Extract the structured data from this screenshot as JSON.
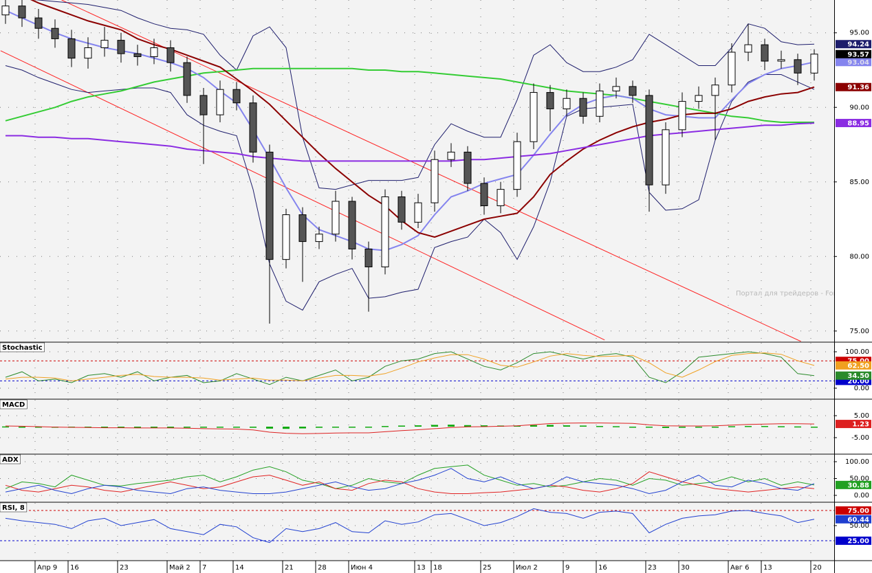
{
  "chart_data": [
    {
      "type": "candlestick",
      "watermark": "Портал для трейдеров - ForTrader.ru",
      "categories": [
        null,
        null,
        "Апр 9",
        null,
        "16",
        null,
        null,
        "23",
        null,
        null,
        "Май 2",
        null,
        "7",
        null,
        "14",
        null,
        null,
        "21",
        null,
        "28",
        null,
        "Июн 4",
        null,
        null,
        null,
        "13",
        "18",
        null,
        null,
        "25",
        null,
        "Июл 2",
        null,
        null,
        "9",
        null,
        "16",
        null,
        null,
        "23",
        null,
        "30",
        null,
        null,
        "Авг 6",
        null,
        "13",
        null,
        null,
        "20"
      ],
      "open": [
        96.2,
        96.8,
        96.0,
        95.3,
        94.6,
        93.3,
        94.0,
        94.5,
        93.6,
        93.4,
        94.0,
        93.0,
        90.8,
        89.5,
        91.2,
        90.3,
        87.0,
        79.8,
        82.8,
        81.0,
        81.5,
        83.7,
        80.5,
        79.3,
        84.0,
        82.3,
        83.6,
        86.5,
        87.0,
        84.9,
        83.4,
        84.5,
        87.7,
        91.0,
        89.9,
        90.6,
        89.4,
        91.1,
        91.4,
        90.8,
        84.8,
        88.5,
        90.4,
        90.8,
        91.5,
        93.7,
        94.2,
        93.1,
        93.2,
        92.3
      ],
      "high": [
        97.4,
        97.3,
        96.6,
        95.9,
        95.2,
        94.7,
        95.4,
        95.0,
        94.2,
        94.6,
        94.5,
        93.4,
        91.3,
        91.8,
        91.7,
        90.8,
        87.5,
        83.2,
        83.3,
        82.0,
        84.4,
        84.0,
        81.0,
        84.5,
        84.4,
        84.2,
        87.1,
        87.6,
        87.4,
        85.3,
        85.0,
        88.3,
        91.6,
        91.5,
        91.2,
        91.0,
        91.6,
        92.0,
        91.8,
        91.2,
        89.0,
        91.0,
        91.4,
        92.0,
        94.3,
        95.6,
        94.6,
        93.8,
        93.6,
        93.9
      ],
      "low": [
        95.6,
        95.4,
        94.6,
        94.0,
        92.7,
        92.6,
        93.4,
        93.0,
        92.8,
        92.9,
        92.4,
        90.3,
        86.2,
        89.0,
        89.8,
        86.3,
        75.5,
        79.2,
        78.3,
        80.5,
        81.0,
        79.8,
        76.3,
        78.8,
        81.8,
        81.9,
        83.0,
        86.0,
        84.4,
        82.8,
        82.9,
        84.0,
        87.2,
        88.4,
        89.4,
        88.9,
        89.0,
        90.6,
        90.3,
        83.0,
        84.2,
        88.0,
        89.9,
        87.8,
        91.0,
        93.1,
        92.5,
        92.6,
        91.5,
        91.8
      ],
      "close": [
        96.8,
        96.0,
        95.3,
        94.6,
        93.3,
        94.0,
        94.5,
        93.6,
        93.4,
        94.0,
        93.0,
        90.8,
        89.5,
        91.2,
        90.3,
        87.0,
        79.8,
        82.8,
        81.0,
        81.5,
        83.7,
        80.5,
        79.3,
        84.0,
        82.3,
        83.6,
        86.5,
        87.0,
        84.9,
        83.4,
        84.5,
        87.7,
        91.0,
        89.9,
        90.6,
        89.4,
        91.1,
        91.4,
        90.8,
        84.8,
        88.5,
        90.4,
        90.8,
        91.5,
        93.7,
        94.2,
        93.1,
        93.2,
        92.3,
        93.57
      ],
      "close_box_color": "#000000",
      "up_color": "#ffffff",
      "down_color": "#555555",
      "overlays": [
        {
          "color": "#1c1c6b",
          "box": true,
          "values": [
            97.5,
            97.3,
            97.2,
            97.1,
            97.0,
            96.9,
            96.7,
            96.5,
            96.0,
            95.6,
            95.3,
            95.2,
            94.9,
            93.5,
            92.5,
            94.8,
            95.4,
            94.0,
            88.0,
            84.6,
            84.5,
            84.8,
            85.1,
            85.1,
            85.1,
            85.3,
            87.5,
            88.9,
            88.4,
            88.0,
            88.0,
            90.5,
            93.5,
            94.2,
            93.0,
            92.4,
            92.4,
            92.7,
            93.2,
            94.9,
            94.2,
            93.5,
            92.8,
            92.8,
            94.0,
            95.6,
            95.3,
            94.4,
            94.2,
            94.24
          ]
        },
        {
          "color": "#1c1c6b",
          "box": false,
          "values": [
            92.8,
            92.5,
            92.0,
            91.6,
            91.2,
            91.0,
            91.1,
            91.2,
            91.3,
            91.3,
            91.0,
            89.5,
            88.8,
            88.4,
            88.1,
            84.5,
            79.5,
            77.0,
            76.4,
            78.3,
            78.8,
            79.2,
            77.2,
            77.3,
            77.6,
            77.8,
            80.6,
            81.0,
            81.3,
            82.5,
            81.6,
            79.8,
            82.0,
            85.0,
            89.4,
            89.9,
            90.0,
            90.1,
            90.2,
            84.3,
            83.1,
            83.2,
            83.8,
            87.8,
            90.4,
            91.7,
            92.2,
            92.2,
            91.7,
            91.2
          ]
        },
        {
          "color": "#33cc33",
          "box": false,
          "values": [
            89.1,
            89.4,
            89.7,
            90.0,
            90.4,
            90.7,
            90.9,
            91.1,
            91.4,
            91.7,
            91.9,
            92.1,
            92.3,
            92.4,
            92.5,
            92.6,
            92.6,
            92.6,
            92.6,
            92.6,
            92.6,
            92.6,
            92.5,
            92.5,
            92.4,
            92.4,
            92.3,
            92.2,
            92.1,
            92.0,
            91.9,
            91.7,
            91.5,
            91.3,
            91.1,
            91.0,
            90.9,
            90.8,
            90.6,
            90.4,
            90.2,
            90.0,
            89.8,
            89.6,
            89.4,
            89.3,
            89.1,
            89.0,
            89.0,
            89.0
          ]
        },
        {
          "color": "#8484ee",
          "box": true,
          "values": [
            96.5,
            96.0,
            95.5,
            95.0,
            94.6,
            94.3,
            94.0,
            93.8,
            93.6,
            93.3,
            93.0,
            92.6,
            92.0,
            91.1,
            90.3,
            88.5,
            86.6,
            84.6,
            82.8,
            81.8,
            81.4,
            81.0,
            80.5,
            80.4,
            80.8,
            81.4,
            82.8,
            84.0,
            84.4,
            84.9,
            85.2,
            85.5,
            86.8,
            88.2,
            89.5,
            90.2,
            90.6,
            90.8,
            90.6,
            89.9,
            89.5,
            89.4,
            89.3,
            89.3,
            90.5,
            91.6,
            92.2,
            92.6,
            92.8,
            93.04
          ]
        },
        {
          "color": "#8b0000",
          "box": true,
          "values": [
            97.9,
            97.5,
            97.0,
            96.6,
            96.2,
            95.8,
            95.5,
            95.2,
            94.6,
            94.2,
            93.9,
            93.5,
            93.1,
            92.7,
            91.9,
            91.1,
            90.2,
            89.1,
            88.0,
            86.9,
            85.9,
            85.0,
            84.1,
            83.4,
            82.4,
            81.6,
            81.3,
            81.7,
            82.1,
            82.5,
            82.7,
            82.9,
            84.0,
            85.5,
            86.4,
            87.2,
            87.8,
            88.3,
            88.7,
            89.0,
            89.2,
            89.5,
            89.6,
            89.6,
            89.9,
            90.4,
            90.7,
            90.9,
            91.0,
            91.36
          ]
        },
        {
          "color": "#8a2be2",
          "box": true,
          "values": [
            88.1,
            88.1,
            88.0,
            88.0,
            87.9,
            87.9,
            87.8,
            87.7,
            87.6,
            87.5,
            87.4,
            87.2,
            87.1,
            87.0,
            86.9,
            86.7,
            86.6,
            86.5,
            86.4,
            86.4,
            86.4,
            86.4,
            86.4,
            86.4,
            86.4,
            86.4,
            86.4,
            86.4,
            86.5,
            86.5,
            86.6,
            86.7,
            86.8,
            86.9,
            87.1,
            87.3,
            87.5,
            87.7,
            87.9,
            88.1,
            88.2,
            88.3,
            88.4,
            88.5,
            88.6,
            88.7,
            88.8,
            88.8,
            88.9,
            88.95
          ]
        }
      ],
      "trendlines": [
        {
          "color": "#ff2020",
          "x": [
            -0.3,
            36.3
          ],
          "y": [
            93.8,
            74.4
          ]
        },
        {
          "color": "#ff2020",
          "x": [
            3.4,
            48.2
          ],
          "y": [
            97.2,
            74.3
          ]
        }
      ],
      "ylim": [
        74.3,
        97.2
      ],
      "yticks": [
        {
          "value": 75,
          "label": "75.00"
        },
        {
          "value": 80,
          "label": "80.00"
        },
        {
          "value": 85,
          "label": "85.00"
        },
        {
          "value": 90,
          "label": "90.00"
        },
        {
          "value": 95,
          "label": "95.00"
        }
      ],
      "grid": true
    },
    {
      "type": "line",
      "title": "Stochastic",
      "series": [
        {
          "color": "#2a8a2a",
          "last_label": "34.50",
          "values": [
            30,
            45,
            20,
            25,
            15,
            35,
            40,
            30,
            45,
            20,
            30,
            35,
            15,
            20,
            40,
            25,
            10,
            30,
            20,
            35,
            50,
            20,
            30,
            60,
            75,
            80,
            95,
            100,
            80,
            60,
            50,
            70,
            95,
            100,
            90,
            80,
            90,
            95,
            85,
            30,
            15,
            45,
            85,
            90,
            95,
            100,
            95,
            85,
            40,
            34.5
          ]
        },
        {
          "color": "#f0a020",
          "last_label": "62.50",
          "values": [
            25,
            30,
            30,
            28,
            20,
            25,
            30,
            35,
            38,
            32,
            30,
            30,
            28,
            22,
            25,
            28,
            22,
            22,
            20,
            28,
            35,
            35,
            33,
            40,
            55,
            72,
            83,
            92,
            92,
            80,
            63,
            58,
            72,
            88,
            95,
            90,
            87,
            88,
            90,
            70,
            42,
            30,
            50,
            73,
            90,
            95,
            97,
            93,
            75,
            62.5
          ]
        }
      ],
      "levels": [
        {
          "value": 75,
          "label": "75.00",
          "color": "#cc0000"
        },
        {
          "value": 20,
          "label": "20.00",
          "color": "#0000cc"
        }
      ],
      "ylim": [
        -28.3,
        124.5
      ],
      "yticks": [
        {
          "value": 100,
          "label": "100.00"
        },
        {
          "value": 0,
          "label": "0.00"
        }
      ],
      "grid": true
    },
    {
      "type": "line",
      "title": "MACD",
      "series": [
        {
          "color": "#11aa11",
          "style": "bars",
          "values": [
            0.1,
            0,
            0,
            0,
            0,
            0,
            0,
            0,
            0,
            0,
            0,
            0,
            -0.2,
            -0.2,
            -0.3,
            -0.5,
            -0.9,
            -1.0,
            -0.8,
            -0.5,
            -0.3,
            -0.2,
            -0.1,
            0.3,
            0.5,
            0.6,
            0.8,
            0.9,
            0.7,
            0.6,
            0.5,
            0.5,
            0.7,
            0.8,
            0.6,
            0.5,
            0.3,
            0.2,
            0,
            -0.4,
            -0.6,
            -0.5,
            -0.3,
            -0.1,
            0.2,
            0.3,
            0.3,
            0.2,
            0.1,
            0
          ]
        },
        {
          "color": "#dd2020",
          "box": true,
          "values": [
            0.3,
            0.2,
            0,
            -0.2,
            -0.3,
            -0.4,
            -0.5,
            -0.5,
            -0.6,
            -0.6,
            -0.6,
            -0.7,
            -0.9,
            -1.0,
            -1.1,
            -1.5,
            -2.5,
            -3.0,
            -3.2,
            -3.1,
            -2.9,
            -2.8,
            -2.8,
            -2.3,
            -1.8,
            -1.4,
            -0.9,
            -0.4,
            -0.1,
            0,
            0.2,
            0.4,
            0.9,
            1.4,
            1.6,
            1.7,
            1.7,
            1.6,
            1.5,
            0.8,
            0.4,
            0.3,
            0.3,
            0.4,
            0.7,
            1.0,
            1.2,
            1.3,
            1.3,
            1.23
          ]
        }
      ],
      "ylim": [
        -12.2,
        12.2
      ],
      "yticks": [
        {
          "value": 5,
          "label": "5.00"
        },
        {
          "value": -5,
          "label": "-5.00"
        }
      ],
      "grid": true
    },
    {
      "type": "line",
      "title": "ADX",
      "series": [
        {
          "color": "#22a022",
          "box": true,
          "values": [
            20,
            40,
            35,
            25,
            60,
            45,
            30,
            28,
            35,
            40,
            45,
            55,
            60,
            40,
            55,
            75,
            85,
            70,
            45,
            35,
            20,
            30,
            50,
            40,
            35,
            60,
            80,
            85,
            90,
            60,
            45,
            30,
            35,
            25,
            30,
            40,
            50,
            45,
            30,
            50,
            45,
            30,
            35,
            40,
            55,
            40,
            50,
            30,
            40,
            30.88
          ]
        },
        {
          "color": "#e02020",
          "values": [
            30,
            15,
            10,
            20,
            30,
            25,
            15,
            10,
            20,
            30,
            40,
            30,
            20,
            25,
            40,
            55,
            60,
            45,
            30,
            40,
            20,
            15,
            35,
            45,
            40,
            20,
            10,
            5,
            5,
            8,
            10,
            15,
            20,
            30,
            25,
            15,
            10,
            20,
            35,
            70,
            55,
            40,
            30,
            20,
            15,
            10,
            15,
            20,
            25,
            20
          ]
        },
        {
          "color": "#2040d0",
          "values": [
            10,
            20,
            30,
            15,
            5,
            20,
            30,
            25,
            15,
            10,
            5,
            20,
            25,
            15,
            10,
            5,
            5,
            10,
            20,
            30,
            40,
            25,
            15,
            20,
            35,
            45,
            60,
            80,
            50,
            40,
            55,
            35,
            20,
            30,
            55,
            40,
            35,
            30,
            20,
            5,
            15,
            40,
            60,
            30,
            25,
            45,
            35,
            20,
            15,
            35
          ]
        }
      ],
      "ylim": [
        -18.4,
        120.4
      ],
      "yticks": [
        {
          "value": 100,
          "label": "100.00"
        },
        {
          "value": 50,
          "label": "50.00"
        },
        {
          "value": 0,
          "label": "0.00"
        }
      ],
      "grid": true
    },
    {
      "type": "line",
      "title": "RSI, 8",
      "series": [
        {
          "color": "#1f3fd0",
          "box": true,
          "values": [
            62,
            58,
            55,
            52,
            45,
            58,
            62,
            50,
            55,
            60,
            45,
            40,
            35,
            52,
            48,
            30,
            22,
            45,
            40,
            45,
            55,
            40,
            38,
            58,
            52,
            56,
            68,
            70,
            60,
            50,
            55,
            65,
            78,
            72,
            70,
            62,
            72,
            74,
            70,
            38,
            52,
            62,
            66,
            68,
            74,
            75,
            70,
            66,
            55,
            60.44
          ]
        }
      ],
      "levels": [
        {
          "value": 75,
          "label": "75.00",
          "color": "#cc0000"
        },
        {
          "value": 25,
          "label": "25.00",
          "color": "#0000cc"
        }
      ],
      "ylim": [
        -6.8,
        87.5
      ],
      "yticks": [
        {
          "value": 50,
          "label": "50.00"
        }
      ],
      "grid": true
    }
  ]
}
